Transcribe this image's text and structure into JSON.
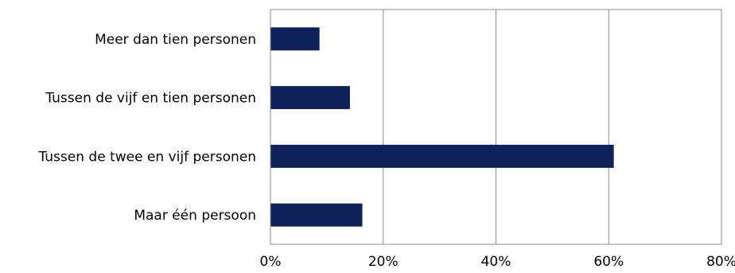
{
  "chart_data": {
    "type": "bar",
    "orientation": "horizontal",
    "title": "",
    "xlabel": "",
    "ylabel": "",
    "categories": [
      "Meer dan tien personen",
      "Tussen de vijf en tien personen",
      "Tussen de twee en vijf personen",
      "Maar één persoon"
    ],
    "values": [
      8.7,
      14.1,
      60.9,
      16.3
    ],
    "unit": "%",
    "xlim": [
      0,
      80
    ],
    "xticks": [
      "0%",
      "20%",
      "40%",
      "60%",
      "80%"
    ],
    "grid": "vertical",
    "legend": "none",
    "bar_color": "#0e2259",
    "grid_color": "#8c8c8c"
  }
}
